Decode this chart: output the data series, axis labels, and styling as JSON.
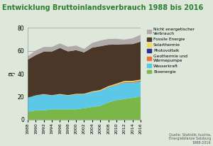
{
  "title": "Entwicklung Bruttoinlandsverbrauch 1988 bis 2016",
  "ylabel": "PJ",
  "background_color": "#dde8da",
  "years": [
    1988,
    1990,
    1992,
    1994,
    1996,
    1998,
    2000,
    2002,
    2004,
    2006,
    2008,
    2010,
    2012,
    2014,
    2016
  ],
  "bioenergie": [
    7,
    8,
    8,
    9,
    9,
    9,
    9,
    10,
    11,
    12,
    15,
    17,
    18,
    19,
    20
  ],
  "wasserkraft": [
    12,
    13,
    14,
    12,
    13,
    12,
    13,
    12,
    13,
    13,
    13,
    13,
    14,
    13,
    13
  ],
  "geothermie": [
    0.1,
    0.1,
    0.1,
    0.1,
    0.1,
    0.1,
    0.1,
    0.1,
    0.1,
    0.2,
    0.3,
    0.4,
    0.5,
    0.5,
    0.5
  ],
  "photovoltaik": [
    0.0,
    0.0,
    0.0,
    0.0,
    0.0,
    0.0,
    0.0,
    0.0,
    0.0,
    0.0,
    0.1,
    0.1,
    0.2,
    0.3,
    0.4
  ],
  "solarthermie": [
    0.1,
    0.1,
    0.2,
    0.2,
    0.3,
    0.3,
    0.4,
    0.5,
    0.6,
    0.7,
    0.8,
    0.9,
    1.0,
    1.0,
    1.0
  ],
  "fossile": [
    33,
    35,
    37,
    38,
    40,
    38,
    38,
    36,
    38,
    38,
    36,
    34,
    32,
    32,
    33
  ],
  "nicht_energetisch": [
    3,
    4,
    4,
    4,
    4,
    4,
    4,
    3,
    4,
    5,
    5,
    5,
    4,
    5,
    6
  ],
  "colors": {
    "bioenergie": "#7ab648",
    "wasserkraft": "#5bc8e8",
    "geothermie": "#e8733a",
    "photovoltaik": "#2e3191",
    "solarthermie": "#f5d55a",
    "fossile": "#4a3728",
    "nicht_energetisch": "#b0aaa8"
  },
  "legend_labels": [
    "Nicht energetischer\nVerbrauch",
    "Fossile Energie",
    "Solarthermie",
    "Photovoltaik",
    "Geothermie und\nWärmepumpe",
    "Wasserkraft",
    "Bioenergie"
  ],
  "source_text": "Quelle: Statistik Austria,\nEnergiebilanze Salzburg\n1988-2016",
  "ylim": [
    0,
    80
  ],
  "yticks": [
    0,
    20,
    40,
    60,
    80
  ],
  "title_color": "#2e7d32",
  "title_fontsize": 7.0
}
